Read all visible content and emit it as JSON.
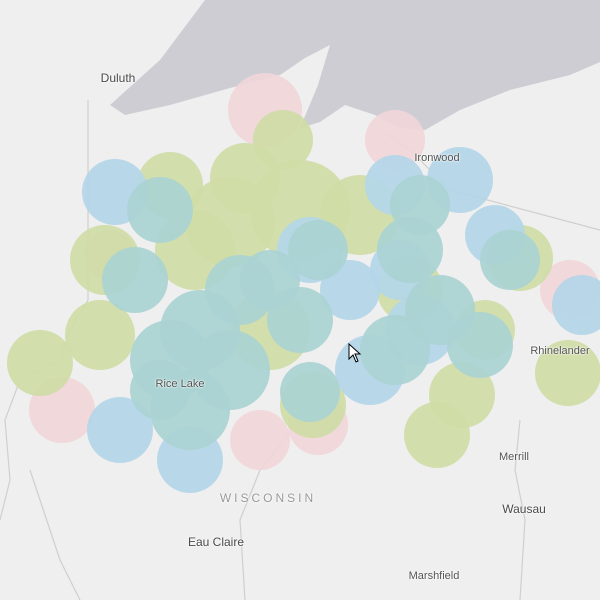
{
  "map": {
    "colors": {
      "land": "#efefef",
      "water": "#cdcdd3",
      "boundary": "#c8c8c8",
      "buffer_pink": "#f0d6d9",
      "buffer_green": "#cfdca6",
      "buffer_blue": "#b3d6e8",
      "buffer_teal": "#aad3d3"
    },
    "labels": {
      "duluth": "Duluth",
      "ironwood": "Ironwood",
      "rice_lake": "Rice Lake",
      "rhinelander": "Rhinelander",
      "state": "WISCONSIN",
      "eau_claire": "Eau Claire",
      "merrill": "Merrill",
      "wausau": "Wausau",
      "marshfield": "Marshfield"
    },
    "cursor_icon": "arrow-pointer-icon"
  }
}
